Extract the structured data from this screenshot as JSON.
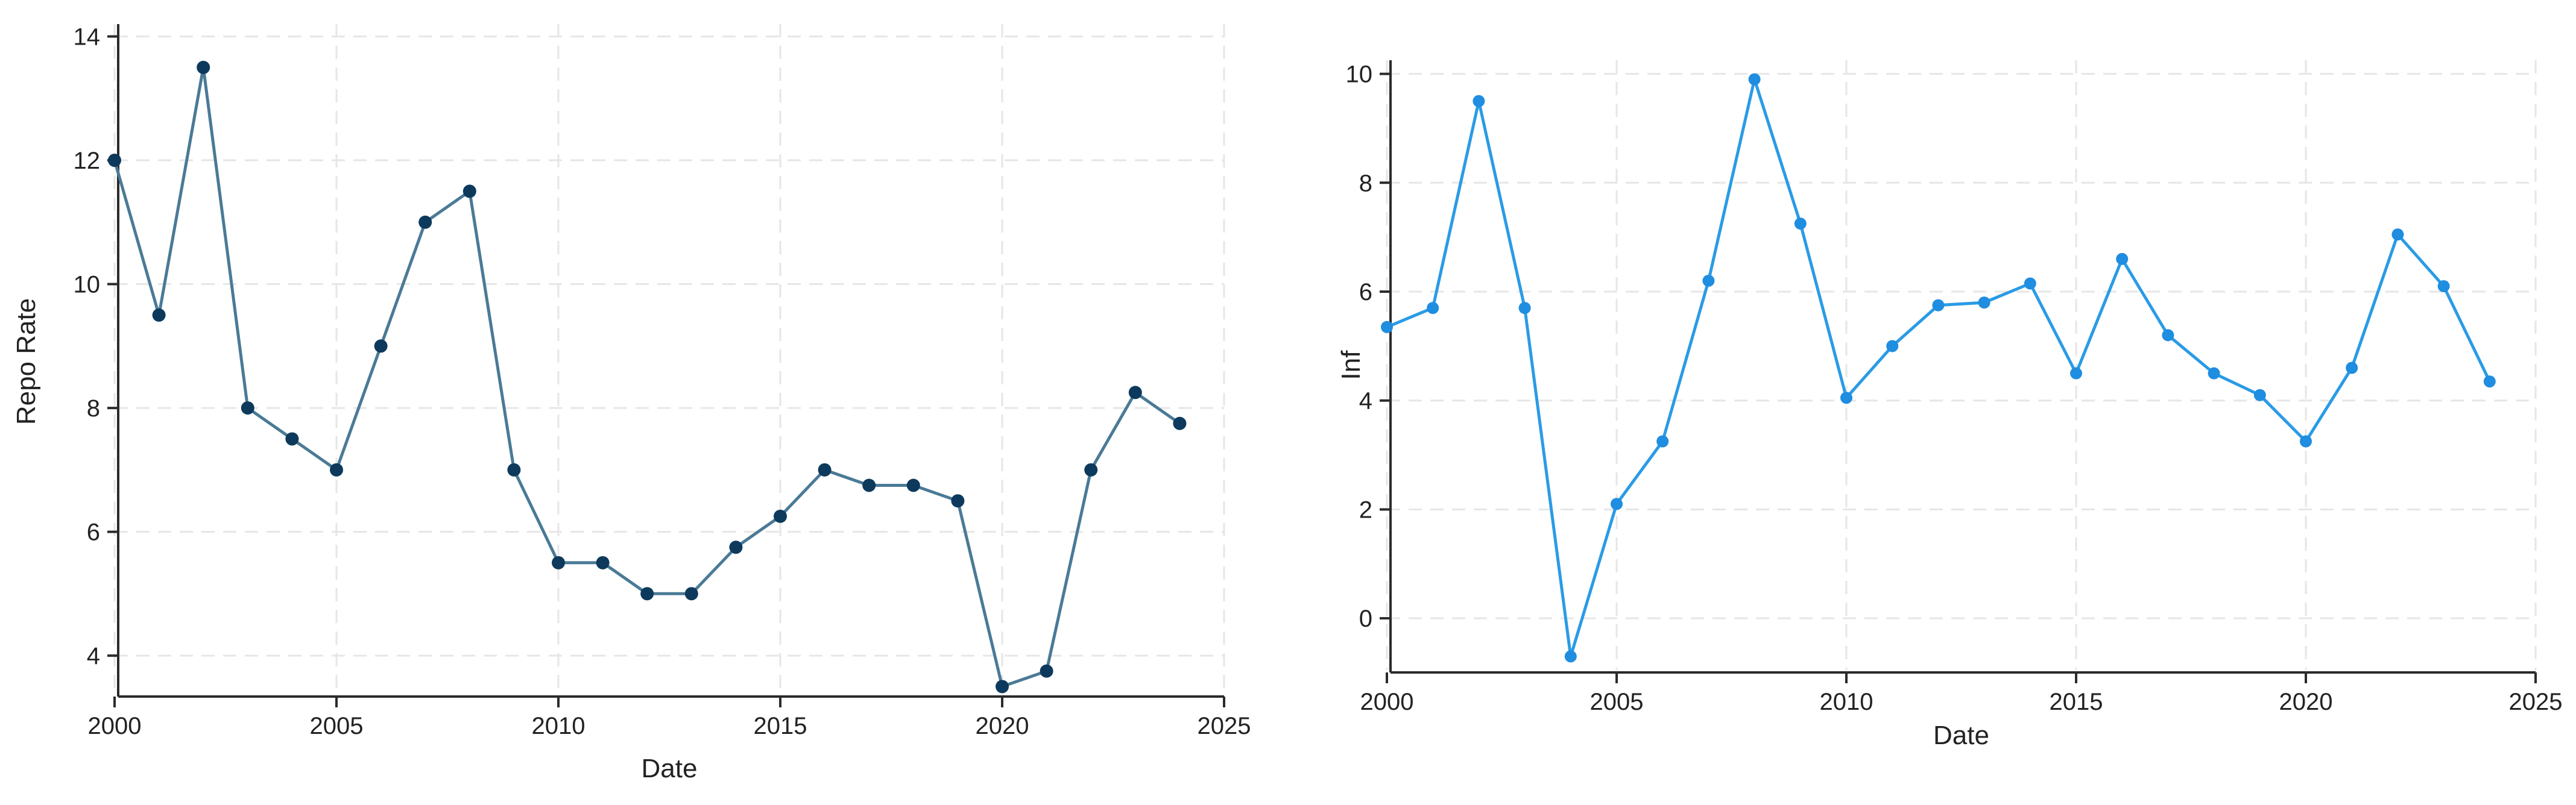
{
  "chart_data": [
    {
      "type": "line",
      "xlabel": "Date",
      "ylabel": "Repo Rate",
      "xlim": [
        2000,
        2025
      ],
      "ylim": [
        3.3,
        14.2
      ],
      "xticks": [
        2000,
        2005,
        2010,
        2015,
        2020,
        2025
      ],
      "yticks": [
        4,
        6,
        8,
        10,
        12,
        14
      ],
      "grid": true,
      "colors": {
        "line": "#4a7a96",
        "marker": "#0d3a5c"
      },
      "series": [
        {
          "x": [
            2000,
            2001,
            2002,
            2003,
            2004,
            2005,
            2006,
            2007,
            2008,
            2009,
            2010,
            2011,
            2012,
            2013,
            2014,
            2015,
            2016,
            2017,
            2018,
            2019,
            2020,
            2021,
            2022,
            2023,
            2024
          ],
          "y": [
            12,
            9.5,
            13.5,
            8,
            7.5,
            7,
            9,
            11,
            11.5,
            7,
            5.5,
            5.5,
            5,
            5,
            5.75,
            6.25,
            7,
            6.75,
            6.75,
            6.5,
            3.5,
            3.75,
            7,
            8.25,
            7.75
          ]
        }
      ]
    },
    {
      "type": "line",
      "xlabel": "Date",
      "ylabel": "Inf",
      "xlim": [
        2000,
        2025
      ],
      "ylim": [
        -0.95,
        10.25
      ],
      "xticks": [
        2000,
        2005,
        2010,
        2015,
        2020,
        2025
      ],
      "yticks": [
        0,
        2,
        4,
        6,
        8,
        10
      ],
      "grid": true,
      "colors": {
        "line": "#2a9be6",
        "marker": "#1f8de0"
      },
      "series": [
        {
          "x": [
            2000,
            2001,
            2002,
            2003,
            2004,
            2005,
            2006,
            2007,
            2008,
            2009,
            2010,
            2011,
            2012,
            2013,
            2014,
            2015,
            2016,
            2017,
            2018,
            2019,
            2020,
            2021,
            2022,
            2023,
            2024
          ],
          "y": [
            5.35,
            5.7,
            9.5,
            5.7,
            -0.7,
            2.1,
            3.25,
            6.2,
            9.9,
            7.25,
            4.05,
            5.0,
            5.75,
            5.8,
            6.15,
            4.5,
            6.6,
            5.2,
            4.5,
            4.1,
            3.25,
            4.6,
            7.05,
            6.1,
            4.35
          ]
        }
      ]
    }
  ]
}
